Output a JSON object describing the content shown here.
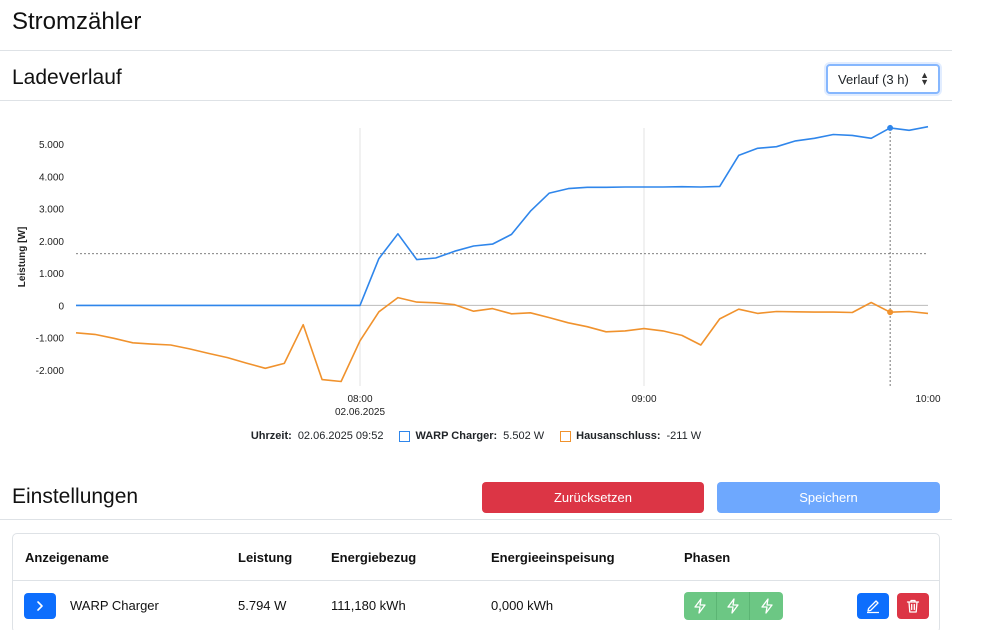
{
  "page": {
    "title": "Stromzähler"
  },
  "history": {
    "title": "Ladeverlauf",
    "select_value": "Verlauf (3 h)"
  },
  "chart_data": {
    "type": "line",
    "ylabel": "Leistung [W]",
    "ylim": [
      -2500,
      5500
    ],
    "yticks": [
      5000,
      4000,
      3000,
      2000,
      1000,
      0,
      -1000,
      -2000
    ],
    "ytick_labels": [
      "5.000",
      "4.000",
      "3.000",
      "2.000",
      "1.000",
      "0",
      "-1.000",
      "-2.000"
    ],
    "x_unit": "minutes since 07:00 on 02.06.2025",
    "xlim": [
      0,
      180
    ],
    "xticks": [
      {
        "value": 60,
        "label": "08:00",
        "sublabel": "02.06.2025"
      },
      {
        "value": 120,
        "label": "09:00",
        "sublabel": ""
      },
      {
        "value": 180,
        "label": "10:00",
        "sublabel": ""
      }
    ],
    "grid_x": [
      60,
      120
    ],
    "hover": {
      "x": 172,
      "y_warp": 5502,
      "y_house": -211,
      "reference_y": 1600
    },
    "series": [
      {
        "name": "WARP Charger",
        "color": "#2f86eb",
        "points": [
          [
            0,
            0
          ],
          [
            15,
            0
          ],
          [
            30,
            0
          ],
          [
            45,
            0
          ],
          [
            60,
            0
          ],
          [
            64,
            1450
          ],
          [
            68,
            2220
          ],
          [
            72,
            1420
          ],
          [
            76,
            1470
          ],
          [
            80,
            1680
          ],
          [
            84,
            1840
          ],
          [
            88,
            1900
          ],
          [
            92,
            2200
          ],
          [
            96,
            2920
          ],
          [
            100,
            3480
          ],
          [
            104,
            3620
          ],
          [
            108,
            3660
          ],
          [
            112,
            3660
          ],
          [
            116,
            3670
          ],
          [
            120,
            3670
          ],
          [
            124,
            3670
          ],
          [
            128,
            3680
          ],
          [
            132,
            3670
          ],
          [
            136,
            3690
          ],
          [
            140,
            4650
          ],
          [
            144,
            4870
          ],
          [
            148,
            4920
          ],
          [
            152,
            5100
          ],
          [
            156,
            5180
          ],
          [
            160,
            5300
          ],
          [
            164,
            5270
          ],
          [
            168,
            5180
          ],
          [
            172,
            5502
          ],
          [
            176,
            5430
          ],
          [
            180,
            5540
          ]
        ]
      },
      {
        "name": "Hausanschluss",
        "color": "#f0922d",
        "points": [
          [
            0,
            -850
          ],
          [
            4,
            -900
          ],
          [
            8,
            -1020
          ],
          [
            12,
            -1160
          ],
          [
            16,
            -1200
          ],
          [
            20,
            -1230
          ],
          [
            24,
            -1350
          ],
          [
            28,
            -1490
          ],
          [
            32,
            -1620
          ],
          [
            36,
            -1790
          ],
          [
            40,
            -1950
          ],
          [
            44,
            -1800
          ],
          [
            48,
            -600
          ],
          [
            52,
            -2300
          ],
          [
            56,
            -2360
          ],
          [
            60,
            -1100
          ],
          [
            64,
            -200
          ],
          [
            68,
            240
          ],
          [
            72,
            100
          ],
          [
            76,
            80
          ],
          [
            80,
            20
          ],
          [
            84,
            -180
          ],
          [
            88,
            -100
          ],
          [
            92,
            -260
          ],
          [
            96,
            -230
          ],
          [
            100,
            -380
          ],
          [
            104,
            -540
          ],
          [
            108,
            -660
          ],
          [
            112,
            -820
          ],
          [
            116,
            -790
          ],
          [
            120,
            -720
          ],
          [
            124,
            -790
          ],
          [
            128,
            -930
          ],
          [
            132,
            -1230
          ],
          [
            136,
            -420
          ],
          [
            140,
            -120
          ],
          [
            144,
            -250
          ],
          [
            148,
            -190
          ],
          [
            152,
            -200
          ],
          [
            156,
            -210
          ],
          [
            160,
            -210
          ],
          [
            164,
            -220
          ],
          [
            168,
            90
          ],
          [
            172,
            -211
          ],
          [
            176,
            -190
          ],
          [
            180,
            -250
          ]
        ]
      }
    ]
  },
  "legend": {
    "time_label": "Uhrzeit:",
    "time_value": "02.06.2025 09:52",
    "items": [
      {
        "name": "WARP Charger:",
        "value": "5.502 W",
        "color": "#2f86eb"
      },
      {
        "name": "Hausanschluss:",
        "value": "-211 W",
        "color": "#f0922d"
      }
    ]
  },
  "settings": {
    "title": "Einstellungen",
    "reset_label": "Zurücksetzen",
    "save_label": "Speichern"
  },
  "table": {
    "columns": [
      "Anzeigename",
      "Leistung",
      "Energiebezug",
      "Energieeinspeisung",
      "Phasen"
    ],
    "rows": [
      {
        "name": "WARP Charger",
        "power": "5.794 W",
        "import": "111,180 kWh",
        "export": "0,000 kWh"
      }
    ]
  },
  "icons": {
    "expand": "chevron-right-icon",
    "phase": "lightning-icon",
    "edit": "pencil-icon",
    "delete": "trash-icon"
  }
}
